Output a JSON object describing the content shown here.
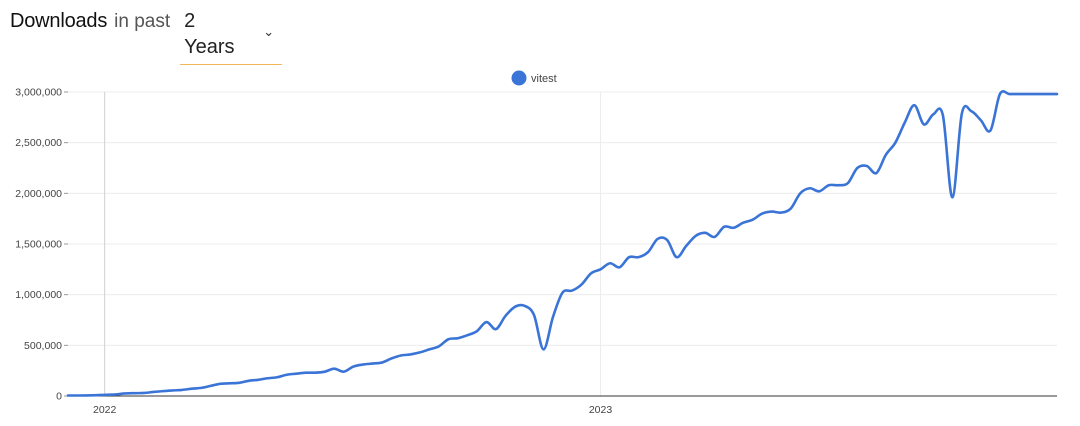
{
  "header": {
    "title": "Downloads",
    "mid": "in past",
    "range_value": "2 Years"
  },
  "colors": {
    "series": "#3a74d6",
    "grid": "#ececec",
    "year_line": "#cfcfcf"
  },
  "chart_data": {
    "type": "line",
    "legend": {
      "position": "top-center",
      "entries": [
        "vitest"
      ]
    },
    "ylim": [
      0,
      3000000
    ],
    "yticks": [
      0,
      500000,
      1000000,
      1500000,
      2000000,
      2500000,
      3000000
    ],
    "ytick_labels": [
      "0",
      "500,000",
      "1,000,000",
      "1,500,000",
      "2,000,000",
      "2,500,000",
      "3,000,000"
    ],
    "xlim": [
      "2021-12-05",
      "2023-12-03"
    ],
    "xtick_labels": [
      {
        "label": "2022",
        "date": "2022-01-01"
      },
      {
        "label": "2023",
        "date": "2023-01-01"
      }
    ],
    "grid": true,
    "series": [
      {
        "name": "vitest",
        "color": "#3a74d6",
        "x": [
          "2021-12-05",
          "2021-12-12",
          "2021-12-19",
          "2021-12-26",
          "2022-01-02",
          "2022-01-09",
          "2022-01-16",
          "2022-01-23",
          "2022-01-30",
          "2022-02-06",
          "2022-02-13",
          "2022-02-20",
          "2022-02-27",
          "2022-03-06",
          "2022-03-13",
          "2022-03-20",
          "2022-03-27",
          "2022-04-03",
          "2022-04-10",
          "2022-04-17",
          "2022-04-24",
          "2022-05-01",
          "2022-05-08",
          "2022-05-15",
          "2022-05-22",
          "2022-05-29",
          "2022-06-05",
          "2022-06-12",
          "2022-06-19",
          "2022-06-26",
          "2022-07-03",
          "2022-07-10",
          "2022-07-17",
          "2022-07-24",
          "2022-07-31",
          "2022-08-07",
          "2022-08-14",
          "2022-08-21",
          "2022-08-28",
          "2022-09-04",
          "2022-09-11",
          "2022-09-18",
          "2022-09-25",
          "2022-10-02",
          "2022-10-09",
          "2022-10-16",
          "2022-10-23",
          "2022-10-30",
          "2022-11-06",
          "2022-11-13",
          "2022-11-20",
          "2022-11-27",
          "2022-12-04",
          "2022-12-11",
          "2022-12-18",
          "2022-12-25",
          "2023-01-01",
          "2023-01-08",
          "2023-01-15",
          "2023-01-22",
          "2023-01-29",
          "2023-02-05",
          "2023-02-12",
          "2023-02-19",
          "2023-02-26",
          "2023-03-05",
          "2023-03-12",
          "2023-03-19",
          "2023-03-26",
          "2023-04-02",
          "2023-04-09",
          "2023-04-16",
          "2023-04-23",
          "2023-04-30",
          "2023-05-07",
          "2023-05-14",
          "2023-05-21",
          "2023-05-28",
          "2023-06-04",
          "2023-06-11",
          "2023-06-18",
          "2023-06-25",
          "2023-07-02",
          "2023-07-09",
          "2023-07-16",
          "2023-07-23",
          "2023-07-30",
          "2023-08-06",
          "2023-08-13",
          "2023-08-20",
          "2023-08-27",
          "2023-09-03",
          "2023-09-10",
          "2023-09-17",
          "2023-09-24",
          "2023-10-01",
          "2023-10-08",
          "2023-10-15",
          "2023-10-22",
          "2023-10-29",
          "2023-11-05",
          "2023-11-12",
          "2023-11-19",
          "2023-11-26",
          "2023-12-03"
        ],
        "values": [
          5000,
          5000,
          6000,
          8000,
          12000,
          15000,
          25000,
          28000,
          30000,
          40000,
          48000,
          55000,
          60000,
          72000,
          80000,
          100000,
          120000,
          125000,
          130000,
          150000,
          160000,
          175000,
          185000,
          210000,
          220000,
          230000,
          230000,
          240000,
          270000,
          240000,
          290000,
          310000,
          320000,
          330000,
          370000,
          400000,
          410000,
          430000,
          460000,
          490000,
          560000,
          570000,
          600000,
          640000,
          730000,
          660000,
          790000,
          880000,
          890000,
          800000,
          460000,
          780000,
          1020000,
          1040000,
          1100000,
          1210000,
          1250000,
          1310000,
          1270000,
          1370000,
          1370000,
          1420000,
          1550000,
          1540000,
          1370000,
          1480000,
          1580000,
          1610000,
          1570000,
          1670000,
          1660000,
          1710000,
          1740000,
          1800000,
          1820000,
          1810000,
          1850000,
          2000000,
          2050000,
          2020000,
          2080000,
          2080000,
          2100000,
          2250000,
          2270000,
          2200000,
          2380000,
          2500000,
          2700000,
          2870000,
          2680000,
          2780000,
          2770000,
          1960000,
          2790000,
          2810000,
          2720000,
          2620000,
          2980000,
          2980000,
          2980000,
          2980000,
          2980000,
          2980000,
          2980000
        ]
      }
    ]
  }
}
